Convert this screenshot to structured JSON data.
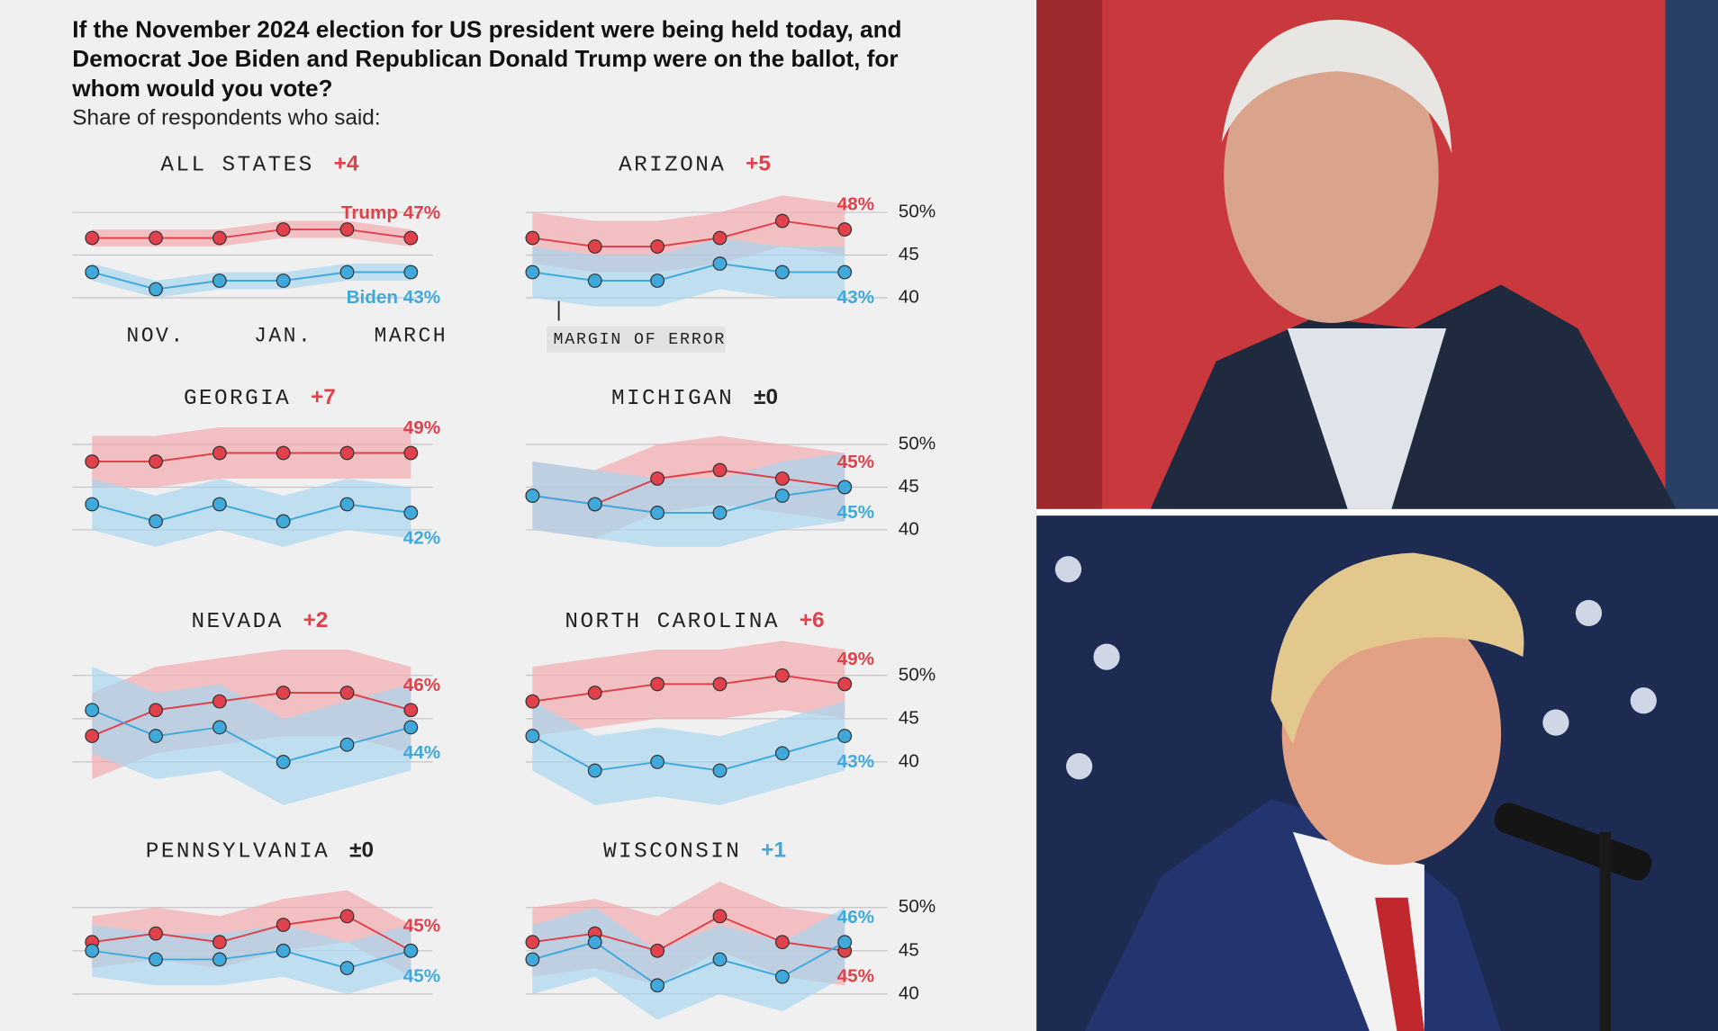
{
  "title": "If the November 2024 election for US president were being held today, and Democrat Joe Biden and Republican Donald Trump were on the ballot, for whom would you vote?",
  "subtitle": "Share of respondents who said:",
  "chart_data": [
    {
      "type": "line",
      "header": "ALL STATES",
      "lead": "+4",
      "lead_color": "#e0414b",
      "categories": [
        null,
        "NOV.",
        null,
        "JAN.",
        null,
        "MARCH"
      ],
      "ylim": [
        40,
        50
      ],
      "series": [
        {
          "color": "#e0414b",
          "band_color": "#f2a9ae",
          "error": 1,
          "values": [
            47,
            47,
            47,
            48,
            48,
            47
          ],
          "value_labels": [
            null,
            null,
            null,
            null,
            null,
            "Trump 47%"
          ]
        },
        {
          "color": "#3fa9dc",
          "band_color": "#a9d6ef",
          "error": 1,
          "values": [
            43,
            41,
            42,
            42,
            43,
            43
          ],
          "value_labels": [
            null,
            null,
            null,
            null,
            null,
            "Biden 43%"
          ]
        }
      ]
    },
    {
      "type": "line",
      "header": "ARIZONA",
      "lead": "+5",
      "lead_color": "#e0414b",
      "ylim": [
        40,
        50
      ],
      "yticks": [
        {
          "value": 50,
          "label": "50%"
        },
        45,
        40
      ],
      "annotation": "MARGIN OF ERROR",
      "series": [
        {
          "color": "#e0414b",
          "band_color": "#f2a9ae",
          "error": 3,
          "values": [
            47,
            46,
            46,
            47,
            49,
            48
          ],
          "value_labels": [
            null,
            null,
            null,
            null,
            null,
            "48%"
          ]
        },
        {
          "color": "#3fa9dc",
          "band_color": "#a9d6ef",
          "error": 3,
          "values": [
            43,
            42,
            42,
            44,
            43,
            43
          ],
          "value_labels": [
            null,
            null,
            null,
            null,
            null,
            "43%"
          ]
        }
      ]
    },
    {
      "type": "line",
      "header": "GEORGIA",
      "lead": "+7",
      "lead_color": "#e0414b",
      "ylim": [
        40,
        50
      ],
      "series": [
        {
          "color": "#e0414b",
          "band_color": "#f2a9ae",
          "error": 3,
          "values": [
            48,
            48,
            49,
            49,
            49,
            49
          ],
          "value_labels": [
            null,
            null,
            null,
            null,
            null,
            "49%"
          ]
        },
        {
          "color": "#3fa9dc",
          "band_color": "#a9d6ef",
          "error": 3,
          "values": [
            43,
            41,
            43,
            41,
            43,
            42
          ],
          "value_labels": [
            null,
            null,
            null,
            null,
            null,
            "42%"
          ]
        }
      ]
    },
    {
      "type": "line",
      "header": "MICHIGAN",
      "lead": "±0",
      "lead_color": "#222222",
      "ylim": [
        40,
        50
      ],
      "yticks": [
        {
          "value": 50,
          "label": "50%"
        },
        45,
        40
      ],
      "series": [
        {
          "color": "#e0414b",
          "band_color": "#f2a9ae",
          "error": 4,
          "values": [
            44,
            43,
            46,
            47,
            46,
            45
          ],
          "value_labels": [
            null,
            null,
            null,
            null,
            null,
            "45%"
          ]
        },
        {
          "color": "#3fa9dc",
          "band_color": "#a9d6ef",
          "error": 4,
          "values": [
            44,
            43,
            42,
            42,
            44,
            45
          ],
          "value_labels": [
            null,
            null,
            null,
            null,
            null,
            "45%"
          ]
        }
      ]
    },
    {
      "type": "line",
      "header": "NEVADA",
      "lead": "+2",
      "lead_color": "#e0414b",
      "ylim": [
        40,
        50
      ],
      "series": [
        {
          "color": "#e0414b",
          "band_color": "#f2a9ae",
          "error": 5,
          "values": [
            43,
            46,
            47,
            48,
            48,
            46
          ],
          "value_labels": [
            null,
            null,
            null,
            null,
            null,
            "46%"
          ]
        },
        {
          "color": "#3fa9dc",
          "band_color": "#a9d6ef",
          "error": 5,
          "values": [
            46,
            43,
            44,
            40,
            42,
            44
          ],
          "value_labels": [
            null,
            null,
            null,
            null,
            null,
            "44%"
          ]
        }
      ]
    },
    {
      "type": "line",
      "header": "NORTH CAROLINA",
      "lead": "+6",
      "lead_color": "#e0414b",
      "ylim": [
        40,
        50
      ],
      "yticks": [
        {
          "value": 50,
          "label": "50%"
        },
        45,
        40
      ],
      "series": [
        {
          "color": "#e0414b",
          "band_color": "#f2a9ae",
          "error": 4,
          "values": [
            47,
            48,
            49,
            49,
            50,
            49
          ],
          "value_labels": [
            null,
            null,
            null,
            null,
            null,
            "49%"
          ]
        },
        {
          "color": "#3fa9dc",
          "band_color": "#a9d6ef",
          "error": 4,
          "values": [
            43,
            39,
            40,
            39,
            41,
            43
          ],
          "value_labels": [
            null,
            null,
            null,
            null,
            null,
            "43%"
          ]
        }
      ]
    },
    {
      "type": "line",
      "header": "PENNSYLVANIA",
      "lead": "±0",
      "lead_color": "#222222",
      "ylim": [
        40,
        50
      ],
      "series": [
        {
          "color": "#e0414b",
          "band_color": "#f2a9ae",
          "error": 3,
          "values": [
            46,
            47,
            46,
            48,
            49,
            45
          ],
          "value_labels": [
            null,
            null,
            null,
            null,
            null,
            "45%"
          ]
        },
        {
          "color": "#3fa9dc",
          "band_color": "#a9d6ef",
          "error": 3,
          "values": [
            45,
            44,
            44,
            45,
            43,
            45
          ],
          "value_labels": [
            null,
            null,
            null,
            null,
            null,
            "45%"
          ]
        }
      ]
    },
    {
      "type": "line",
      "header": "WISCONSIN",
      "lead": "+1",
      "lead_color": "#3fa9dc",
      "ylim": [
        40,
        50
      ],
      "yticks": [
        {
          "value": 50,
          "label": "50%"
        },
        45,
        40
      ],
      "series": [
        {
          "color": "#e0414b",
          "band_color": "#f2a9ae",
          "error": 4,
          "values": [
            46,
            47,
            45,
            49,
            46,
            45
          ],
          "value_labels": [
            null,
            null,
            null,
            null,
            null,
            "45%"
          ]
        },
        {
          "color": "#3fa9dc",
          "band_color": "#a9d6ef",
          "error": 4,
          "values": [
            44,
            46,
            41,
            44,
            42,
            46
          ],
          "value_labels": [
            null,
            null,
            null,
            null,
            null,
            "46%"
          ]
        }
      ]
    }
  ]
}
